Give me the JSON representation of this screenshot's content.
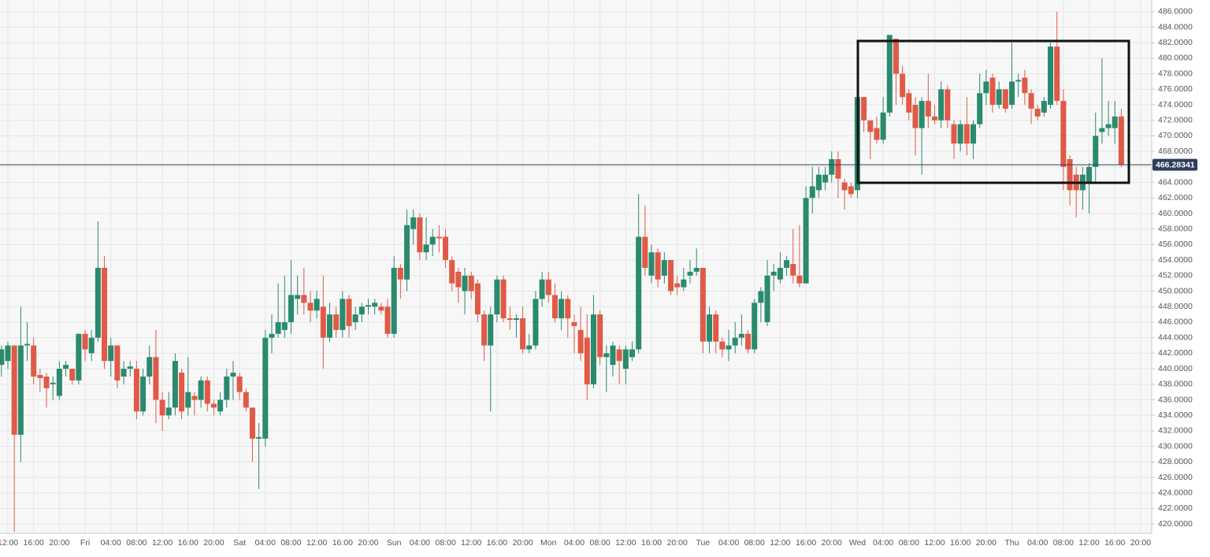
{
  "chart_data": {
    "type": "candlestick",
    "up_color": "#2a8a6e",
    "down_color": "#e05a47",
    "grid": true,
    "last_price": 466.28341,
    "last_price_color": "#2c3e5c",
    "ylim": [
      418.8,
      487.5
    ],
    "yticks": [
      {
        "value": 420,
        "label": "420.0000"
      },
      {
        "value": 422,
        "label": "422.0000"
      },
      {
        "value": 424,
        "label": "424.0000"
      },
      {
        "value": 426,
        "label": "426.0000"
      },
      {
        "value": 428,
        "label": "428.0000"
      },
      {
        "value": 430,
        "label": "430.0000"
      },
      {
        "value": 432,
        "label": "432.0000"
      },
      {
        "value": 434,
        "label": "434.0000"
      },
      {
        "value": 436,
        "label": "436.0000"
      },
      {
        "value": 438,
        "label": "438.0000"
      },
      {
        "value": 440,
        "label": "440.0000"
      },
      {
        "value": 442,
        "label": "442.0000"
      },
      {
        "value": 444,
        "label": "444.0000"
      },
      {
        "value": 446,
        "label": "446.0000"
      },
      {
        "value": 448,
        "label": "448.0000"
      },
      {
        "value": 450,
        "label": "450.0000"
      },
      {
        "value": 452,
        "label": "452.0000"
      },
      {
        "value": 454,
        "label": "454.0000"
      },
      {
        "value": 456,
        "label": "456.0000"
      },
      {
        "value": 458,
        "label": "458.0000"
      },
      {
        "value": 460,
        "label": "460.0000"
      },
      {
        "value": 462,
        "label": "462.0000"
      },
      {
        "value": 464,
        "label": "464.0000"
      },
      {
        "value": 466,
        "label": "466.0000"
      },
      {
        "value": 468,
        "label": "468.0000"
      },
      {
        "value": 470,
        "label": "470.0000"
      },
      {
        "value": 472,
        "label": "472.0000"
      },
      {
        "value": 474,
        "label": "474.0000"
      },
      {
        "value": 476,
        "label": "476.0000"
      },
      {
        "value": 478,
        "label": "478.0000"
      },
      {
        "value": 480,
        "label": "480.0000"
      },
      {
        "value": 482,
        "label": "482.0000"
      },
      {
        "value": 484,
        "label": "484.0000"
      },
      {
        "value": 486,
        "label": "486.0000"
      }
    ],
    "categories": [
      null,
      "12:00",
      null,
      null,
      null,
      "16:00",
      null,
      null,
      null,
      "20:00",
      null,
      null,
      null,
      "Fri",
      null,
      null,
      null,
      "04:00",
      null,
      null,
      null,
      "08:00",
      null,
      null,
      null,
      "12:00",
      null,
      null,
      null,
      "16:00",
      null,
      null,
      null,
      "20:00",
      null,
      null,
      null,
      "Sat",
      null,
      null,
      null,
      "04:00",
      null,
      null,
      null,
      "08:00",
      null,
      null,
      null,
      "12:00",
      null,
      null,
      null,
      "16:00",
      null,
      null,
      null,
      "20:00",
      null,
      null,
      null,
      "Sun",
      null,
      null,
      null,
      "04:00",
      null,
      null,
      null,
      "08:00",
      null,
      null,
      null,
      "12:00",
      null,
      null,
      null,
      "16:00",
      null,
      null,
      null,
      "20:00",
      null,
      null,
      null,
      "Mon",
      null,
      null,
      null,
      "04:00",
      null,
      null,
      null,
      "08:00",
      null,
      null,
      null,
      "12:00",
      null,
      null,
      null,
      "16:00",
      null,
      null,
      null,
      "20:00",
      null,
      null,
      null,
      "Tue",
      null,
      null,
      null,
      "04:00",
      null,
      null,
      null,
      "08:00",
      null,
      null,
      null,
      "12:00",
      null,
      null,
      null,
      "16:00",
      null,
      null,
      null,
      "20:00",
      null,
      null,
      null,
      "Wed",
      null,
      null,
      null,
      "04:00",
      null,
      null,
      null,
      "08:00",
      null,
      null,
      null,
      "12:00",
      null,
      null,
      null,
      "16:00",
      null,
      null,
      null,
      "20:00",
      null,
      null,
      null,
      "Thu",
      null,
      null,
      null,
      "04:00",
      null,
      null,
      null,
      "08:00",
      null,
      null,
      null,
      "12:00",
      null,
      null,
      null,
      "16:00",
      null,
      null,
      null,
      "20:00"
    ],
    "open": [
      440.5,
      441,
      443,
      431.5,
      443,
      443,
      439.2,
      439,
      438,
      436.5,
      440,
      440,
      438.5,
      444.5,
      442,
      444,
      453,
      441,
      443,
      439,
      440,
      440,
      434.5,
      439,
      441.5,
      436,
      434,
      435,
      439.5,
      435,
      436.5,
      436,
      438.5,
      435.5,
      434.5,
      436,
      439,
      439,
      437,
      435,
      431,
      431,
      444,
      444.5,
      445,
      446,
      449,
      449.5,
      448.5,
      447.5,
      448,
      444,
      447,
      445,
      449,
      446,
      447,
      448,
      448,
      448,
      448,
      444.5,
      453,
      451.5,
      458,
      459.5,
      455,
      456,
      457,
      457,
      454,
      452.5,
      450,
      452,
      451,
      447,
      443,
      447,
      451.5,
      446.5,
      446.3,
      446.5,
      442.5,
      443,
      449,
      451.5,
      449.5,
      446.5,
      449,
      446,
      445,
      444,
      438,
      447,
      441.5,
      440.5,
      442.5,
      440,
      441.5,
      442.5,
      457,
      452,
      455,
      452,
      454,
      451,
      450.5,
      452,
      452.5,
      453,
      443.5,
      447,
      443.5,
      442.5,
      443,
      444,
      444.5,
      442.5,
      448.5,
      446,
      452,
      451.5,
      453,
      453.5,
      452,
      451,
      462,
      463,
      464,
      465,
      467,
      464,
      463.5,
      463,
      475,
      472,
      471,
      469.5,
      473,
      482.5,
      478,
      475.5,
      474,
      471,
      474.5,
      472.5,
      472,
      476,
      471.5,
      469,
      471.5,
      469,
      471.5,
      475.5,
      477.5,
      474,
      476,
      474,
      477,
      477.5,
      475.5,
      473.5,
      473,
      474,
      481.5,
      474.5,
      467,
      465,
      463,
      464,
      466,
      470.5,
      471,
      471,
      472.5,
      null,
      null,
      null
    ],
    "high": [
      443,
      443.5,
      443,
      448,
      446,
      444,
      440,
      439.5,
      439,
      441,
      441,
      440,
      444.5,
      445,
      445,
      459,
      454.5,
      444,
      443,
      441,
      441,
      441,
      440,
      443,
      445,
      437,
      437,
      442,
      440,
      441.5,
      437,
      439,
      439,
      436,
      437,
      440,
      441,
      439.5,
      437.5,
      435,
      433,
      445,
      447,
      451,
      452,
      454,
      452,
      453,
      450,
      450,
      452,
      448.5,
      448,
      450,
      449.5,
      448,
      448.5,
      449,
      449,
      448.5,
      449,
      454.5,
      453.5,
      460.5,
      460.5,
      460,
      459.5,
      458,
      458.5,
      458,
      454.5,
      453,
      453,
      452.5,
      451.5,
      447.5,
      448,
      452,
      452,
      448,
      447,
      448,
      444.5,
      450,
      452.5,
      452.5,
      451,
      450,
      449.5,
      447,
      448,
      447,
      449.5,
      447.5,
      443,
      443.5,
      443,
      443,
      443.5,
      462.5,
      461,
      456,
      455.5,
      455,
      454,
      452,
      453,
      454,
      455.5,
      453,
      448,
      447.5,
      444,
      445,
      446,
      447,
      445,
      449,
      450.5,
      454,
      453.5,
      455,
      454.5,
      458,
      458.5,
      463.5,
      466,
      466,
      466,
      468,
      468,
      464.5,
      464,
      475,
      475,
      472,
      472.5,
      475,
      483,
      482.5,
      479,
      476,
      475,
      475,
      478,
      474,
      477,
      476.5,
      472,
      472,
      475,
      472,
      478,
      478.5,
      478,
      477,
      476,
      482,
      478,
      478.5,
      476,
      474,
      475,
      482,
      486,
      476,
      467.5,
      466,
      466,
      466.5,
      473,
      480,
      474.5,
      474.5,
      473.5,
      null,
      null,
      null
    ],
    "low": [
      439,
      440,
      419,
      428,
      441,
      438,
      437,
      435,
      436,
      436,
      439,
      438,
      438,
      441,
      441,
      443.5,
      440,
      439,
      437.5,
      438,
      439,
      433.5,
      434,
      438,
      433,
      432,
      433.5,
      434,
      433.5,
      434,
      434,
      435,
      434.5,
      434,
      434,
      435,
      436,
      436,
      434.5,
      428,
      424.5,
      430,
      442,
      444,
      444,
      444.5,
      447,
      447,
      446,
      446.5,
      440,
      443.5,
      444,
      444,
      444,
      445,
      446,
      447,
      447,
      447,
      444,
      444,
      449,
      450,
      456,
      454,
      454,
      454.5,
      455,
      453,
      450,
      448.5,
      447,
      449,
      446,
      441,
      434.5,
      446,
      446,
      445,
      444,
      442,
      442,
      442.5,
      448,
      448.5,
      446,
      445,
      444,
      442,
      441,
      436,
      437.5,
      440.5,
      437,
      439,
      438,
      438,
      441,
      442,
      452,
      451,
      450.5,
      451,
      449.5,
      449.5,
      450,
      451,
      452,
      442,
      442,
      442,
      441.5,
      441,
      442,
      443,
      442,
      442,
      446,
      445.5,
      450,
      451,
      452,
      451,
      450.5,
      451,
      460,
      462,
      463,
      464,
      462,
      460.5,
      462,
      462,
      470.5,
      467,
      469,
      469,
      472.5,
      474,
      474,
      472,
      467.5,
      465,
      471,
      471.5,
      471,
      471,
      467,
      468,
      467.5,
      467,
      471,
      474,
      473,
      473.5,
      473,
      473.5,
      475,
      474,
      471.5,
      472,
      472.5,
      473.5,
      474,
      463,
      461,
      459.5,
      460.5,
      460,
      464,
      469,
      470,
      469,
      466,
      null,
      null,
      null
    ],
    "close": [
      442.5,
      443,
      431.5,
      443,
      443.2,
      439,
      438.8,
      437.5,
      438.2,
      440,
      440.5,
      438.5,
      444.5,
      442.5,
      444,
      453,
      441,
      443,
      438.5,
      440,
      440.3,
      434.5,
      439,
      441.5,
      436,
      434,
      435,
      441,
      434.5,
      437,
      436,
      438.5,
      435.5,
      435,
      436,
      439,
      439.5,
      437,
      435,
      431,
      431.2,
      444,
      444.5,
      446,
      446,
      449.5,
      449.5,
      448.5,
      447.5,
      449,
      444,
      447,
      445,
      449,
      445.5,
      447,
      448,
      448.2,
      448.5,
      447.5,
      444.5,
      453,
      451.5,
      458.5,
      459.5,
      455,
      456,
      457,
      456.8,
      454,
      451,
      450.5,
      452,
      450,
      447,
      443,
      447,
      451.5,
      446.5,
      446.3,
      446.5,
      442.5,
      443,
      449,
      451.5,
      449.5,
      446.5,
      449,
      446.5,
      445.5,
      442,
      438,
      447,
      441.5,
      442,
      443,
      441,
      442.5,
      442.5,
      457,
      453,
      455,
      451.5,
      454,
      450,
      450.5,
      451.5,
      452.5,
      453,
      443.5,
      447,
      443.5,
      442.5,
      443,
      444,
      444.5,
      442.5,
      448.5,
      450,
      452,
      452.5,
      453,
      454,
      452,
      451,
      462,
      463.5,
      465,
      465,
      467,
      464.5,
      463,
      462.5,
      475,
      472,
      470.5,
      469.5,
      473,
      483,
      478,
      475,
      473,
      471,
      474.5,
      472.5,
      472,
      476,
      472,
      469,
      471.5,
      469,
      471.5,
      475.5,
      477,
      474,
      476,
      473.5,
      477,
      477.2,
      475.5,
      473.5,
      472.5,
      474.5,
      481.5,
      474.5,
      466,
      463,
      463,
      465,
      466,
      470,
      471,
      471.5,
      472.5,
      466.3,
      null,
      null,
      null
    ]
  }
}
